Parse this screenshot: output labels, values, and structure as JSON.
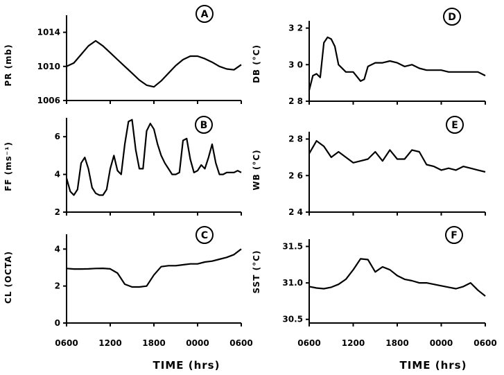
{
  "x_title": "TIME (hrs)",
  "x_tick_labels": [
    "0600",
    "1200",
    "1800",
    "0000",
    "0600"
  ],
  "chart_data": [
    {
      "id": "A",
      "type": "line",
      "ylabel": "PR (mb)",
      "ylim": [
        1006,
        1016
      ],
      "yticks": [
        1006,
        1010,
        1014
      ],
      "ytick_labels": [
        "1006",
        "1010",
        "1014"
      ],
      "x": [
        0,
        1,
        2,
        3,
        4,
        5,
        6,
        7,
        8,
        9,
        10,
        11,
        12,
        13,
        14,
        15,
        16,
        17,
        18,
        19,
        20,
        21,
        22,
        23,
        24
      ],
      "y": [
        1010.0,
        1010.4,
        1011.4,
        1012.4,
        1013.0,
        1012.4,
        1011.6,
        1010.8,
        1010.0,
        1009.2,
        1008.4,
        1007.8,
        1007.6,
        1008.3,
        1009.2,
        1010.1,
        1010.8,
        1011.2,
        1011.2,
        1010.9,
        1010.5,
        1010.0,
        1009.7,
        1009.6,
        1010.2
      ]
    },
    {
      "id": "B",
      "type": "line",
      "ylabel": "FF (ms⁻¹)",
      "ylim": [
        2,
        7
      ],
      "yticks": [
        2,
        4,
        6
      ],
      "ytick_labels": [
        "2",
        "4",
        "6"
      ],
      "x": [
        0,
        0.5,
        1,
        1.5,
        2,
        2.5,
        3,
        3.5,
        4,
        4.5,
        5,
        5.5,
        6,
        6.5,
        7,
        7.5,
        8,
        8.5,
        9,
        9.5,
        10,
        10.5,
        11,
        11.5,
        12,
        12.5,
        13,
        13.5,
        14,
        14.5,
        15,
        15.5,
        16,
        16.5,
        17,
        17.5,
        18,
        18.5,
        19,
        19.5,
        20,
        20.5,
        21,
        21.5,
        22,
        22.5,
        23,
        23.5,
        24
      ],
      "y": [
        3.8,
        3.1,
        2.9,
        3.2,
        4.6,
        4.9,
        4.3,
        3.3,
        3.0,
        2.9,
        2.9,
        3.2,
        4.3,
        5.0,
        4.2,
        4.0,
        5.6,
        6.8,
        6.9,
        5.3,
        4.3,
        4.3,
        6.3,
        6.7,
        6.4,
        5.6,
        5.0,
        4.6,
        4.3,
        4.0,
        4.0,
        4.1,
        5.8,
        5.9,
        4.8,
        4.1,
        4.2,
        4.5,
        4.3,
        4.9,
        5.6,
        4.6,
        4.0,
        4.0,
        4.1,
        4.1,
        4.1,
        4.2,
        4.1
      ]
    },
    {
      "id": "C",
      "type": "line",
      "ylabel": "CL (OCTA)",
      "ylim": [
        0,
        4.8
      ],
      "yticks": [
        0,
        2,
        4
      ],
      "ytick_labels": [
        "0",
        "2",
        "4"
      ],
      "x": [
        0,
        1,
        2,
        3,
        4,
        5,
        6,
        7,
        8,
        9,
        10,
        11,
        12,
        13,
        14,
        15,
        16,
        17,
        18,
        19,
        20,
        21,
        22,
        23,
        24
      ],
      "y": [
        2.95,
        2.92,
        2.92,
        2.93,
        2.95,
        2.96,
        2.93,
        2.7,
        2.1,
        1.95,
        1.95,
        2.0,
        2.6,
        3.05,
        3.1,
        3.1,
        3.15,
        3.2,
        3.2,
        3.3,
        3.35,
        3.45,
        3.55,
        3.7,
        4.0
      ]
    },
    {
      "id": "D",
      "type": "line",
      "ylabel": "DB (°C)",
      "ylim": [
        28,
        32.4
      ],
      "yticks": [
        28,
        30,
        32
      ],
      "ytick_labels": [
        "2 8",
        "3 0",
        "3 2"
      ],
      "x": [
        0,
        0.5,
        1,
        1.5,
        2,
        2.5,
        3,
        3.5,
        4,
        5,
        6,
        7,
        7.5,
        8,
        9,
        10,
        11,
        12,
        13,
        14,
        15,
        16,
        17,
        18,
        19,
        20,
        21,
        22,
        23,
        24
      ],
      "y": [
        28.6,
        29.4,
        29.5,
        29.3,
        31.2,
        31.5,
        31.4,
        31.0,
        30.0,
        29.6,
        29.6,
        29.1,
        29.2,
        29.9,
        30.1,
        30.1,
        30.2,
        30.1,
        29.9,
        30.0,
        29.8,
        29.7,
        29.7,
        29.7,
        29.6,
        29.6,
        29.6,
        29.6,
        29.6,
        29.4
      ]
    },
    {
      "id": "E",
      "type": "line",
      "ylabel": "WB (°C)",
      "ylim": [
        24,
        28.4
      ],
      "yticks": [
        24,
        26,
        28
      ],
      "ytick_labels": [
        "2 4",
        "2 6",
        "2 8"
      ],
      "x": [
        0,
        1,
        2,
        3,
        4,
        5,
        6,
        7,
        8,
        9,
        10,
        11,
        12,
        13,
        14,
        15,
        16,
        17,
        18,
        19,
        20,
        21,
        22,
        23,
        24
      ],
      "y": [
        27.2,
        27.9,
        27.6,
        27.0,
        27.3,
        27.0,
        26.7,
        26.8,
        26.9,
        27.3,
        26.8,
        27.4,
        26.9,
        26.9,
        27.4,
        27.3,
        26.6,
        26.5,
        26.3,
        26.4,
        26.3,
        26.5,
        26.4,
        26.3,
        26.2
      ]
    },
    {
      "id": "F",
      "type": "line",
      "ylabel": "SST (°C)",
      "ylim": [
        30.45,
        31.6
      ],
      "yticks": [
        30.5,
        31.0,
        31.5
      ],
      "ytick_labels": [
        "30.5",
        "31.0",
        "31.5"
      ],
      "x": [
        0,
        1,
        2,
        3,
        4,
        5,
        6,
        7,
        8,
        9,
        10,
        11,
        12,
        13,
        14,
        15,
        16,
        17,
        18,
        19,
        20,
        21,
        22,
        23,
        24
      ],
      "y": [
        30.95,
        30.93,
        30.92,
        30.94,
        30.98,
        31.05,
        31.18,
        31.33,
        31.32,
        31.15,
        31.22,
        31.18,
        31.1,
        31.05,
        31.03,
        31.0,
        31.0,
        30.98,
        30.96,
        30.94,
        30.92,
        30.95,
        31.0,
        30.9,
        30.82
      ]
    }
  ]
}
